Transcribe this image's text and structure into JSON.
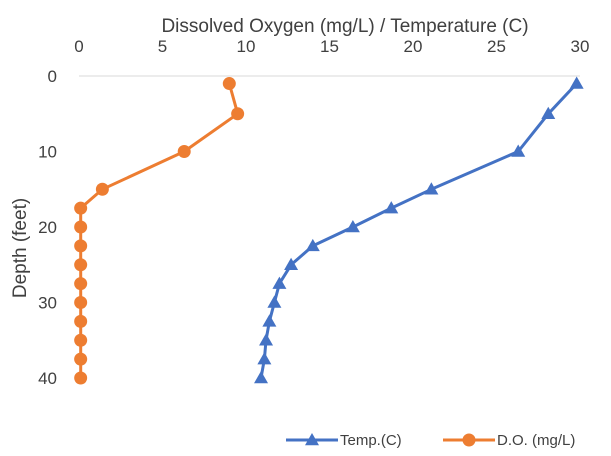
{
  "chart_data": {
    "type": "line",
    "title": "",
    "xlabel": "Dissolved Oxygen (mg/L) / Temperature (C)",
    "ylabel": "Depth (feet)",
    "xlim": [
      0,
      30
    ],
    "ylim": [
      0,
      40
    ],
    "y_inverted": true,
    "x_axis_position": "top",
    "x_ticks": [
      "0",
      "5",
      "10",
      "15",
      "20",
      "25",
      "30"
    ],
    "y_ticks": [
      "0",
      "10",
      "20",
      "30",
      "40"
    ],
    "grid": false,
    "legend_position": "bottom-right",
    "series": [
      {
        "name": "Temp.(C)",
        "color": "#4472C4",
        "marker": "triangle",
        "points": [
          {
            "x": 29.8,
            "y": 1
          },
          {
            "x": 28.1,
            "y": 5
          },
          {
            "x": 26.3,
            "y": 10
          },
          {
            "x": 21.1,
            "y": 15
          },
          {
            "x": 18.7,
            "y": 17.5
          },
          {
            "x": 16.4,
            "y": 20
          },
          {
            "x": 14.0,
            "y": 22.5
          },
          {
            "x": 12.7,
            "y": 25
          },
          {
            "x": 12.0,
            "y": 27.5
          },
          {
            "x": 11.7,
            "y": 30
          },
          {
            "x": 11.4,
            "y": 32.5
          },
          {
            "x": 11.2,
            "y": 35
          },
          {
            "x": 11.1,
            "y": 37.5
          },
          {
            "x": 10.9,
            "y": 40
          }
        ]
      },
      {
        "name": "D.O. (mg/L)",
        "color": "#ED7D31",
        "marker": "circle",
        "points": [
          {
            "x": 9.0,
            "y": 1
          },
          {
            "x": 9.5,
            "y": 5
          },
          {
            "x": 6.3,
            "y": 10
          },
          {
            "x": 1.4,
            "y": 15
          },
          {
            "x": 0.1,
            "y": 17.5
          },
          {
            "x": 0.1,
            "y": 20
          },
          {
            "x": 0.1,
            "y": 22.5
          },
          {
            "x": 0.1,
            "y": 25
          },
          {
            "x": 0.1,
            "y": 27.5
          },
          {
            "x": 0.1,
            "y": 30
          },
          {
            "x": 0.1,
            "y": 32.5
          },
          {
            "x": 0.1,
            "y": 35
          },
          {
            "x": 0.1,
            "y": 37.5
          },
          {
            "x": 0.1,
            "y": 40
          }
        ]
      }
    ]
  }
}
